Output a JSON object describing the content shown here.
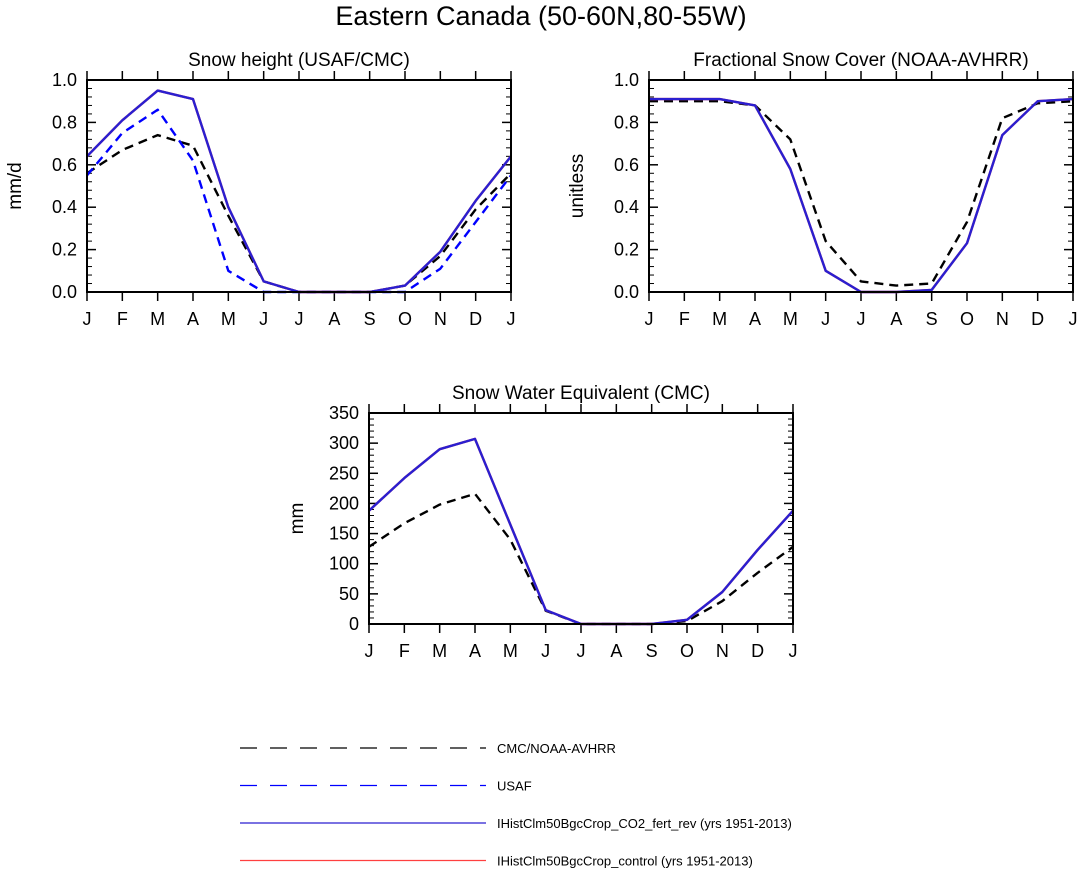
{
  "figure": {
    "title": "Eastern Canada (50-60N,80-55W)"
  },
  "colors": {
    "obs": "#000000",
    "usaf": "#0000ff",
    "co2": "#2a1fd0",
    "control": "#ff4040"
  },
  "chart_data": [
    {
      "type": "line",
      "title": "Snow height (USAF/CMC)",
      "xlabel": "",
      "ylabel": "mm/d",
      "ylim": [
        0,
        1.0
      ],
      "yticks": [
        0,
        0.2,
        0.4,
        0.6,
        0.8,
        1.0
      ],
      "ytick_labels": [
        "0.0",
        "0.2",
        "0.4",
        "0.6",
        "0.8",
        "1.0"
      ],
      "categories": [
        "J",
        "F",
        "M",
        "A",
        "M",
        "J",
        "J",
        "A",
        "S",
        "O",
        "N",
        "D",
        "J"
      ],
      "series": [
        {
          "name": "CMC/NOAA-AVHRR",
          "style": "dashed",
          "color": "#000000",
          "values": [
            0.56,
            0.67,
            0.74,
            0.69,
            0.36,
            0.05,
            0.0,
            0.0,
            0.0,
            0.03,
            0.17,
            0.39,
            0.56
          ]
        },
        {
          "name": "USAF",
          "style": "dashed",
          "color": "#0000ff",
          "values": [
            0.55,
            0.75,
            0.86,
            0.62,
            0.1,
            0.0,
            0.0,
            0.0,
            0.0,
            0.0,
            0.11,
            0.33,
            0.55
          ]
        },
        {
          "name": "IHistClm50BgcCrop_control (yrs 1951-2013)",
          "style": "solid",
          "color": "#ff4040",
          "values": [
            0.64,
            0.81,
            0.95,
            0.91,
            0.4,
            0.05,
            0.0,
            0.0,
            0.0,
            0.03,
            0.19,
            0.43,
            0.64
          ]
        },
        {
          "name": "IHistClm50BgcCrop_CO2_fert_rev (yrs 1951-2013)",
          "style": "solid",
          "color": "#2a1fd0",
          "values": [
            0.64,
            0.81,
            0.95,
            0.91,
            0.4,
            0.05,
            0.0,
            0.0,
            0.0,
            0.03,
            0.19,
            0.43,
            0.64
          ]
        }
      ]
    },
    {
      "type": "line",
      "title": "Fractional Snow Cover (NOAA-AVHRR)",
      "xlabel": "",
      "ylabel": "unitless",
      "ylim": [
        0,
        1.0
      ],
      "yticks": [
        0,
        0.2,
        0.4,
        0.6,
        0.8,
        1.0
      ],
      "ytick_labels": [
        "0.0",
        "0.2",
        "0.4",
        "0.6",
        "0.8",
        "1.0"
      ],
      "categories": [
        "J",
        "F",
        "M",
        "A",
        "M",
        "J",
        "J",
        "A",
        "S",
        "O",
        "N",
        "D",
        "J"
      ],
      "series": [
        {
          "name": "CMC/NOAA-AVHRR",
          "style": "dashed",
          "color": "#000000",
          "values": [
            0.9,
            0.9,
            0.9,
            0.88,
            0.72,
            0.24,
            0.05,
            0.03,
            0.04,
            0.33,
            0.82,
            0.89,
            0.9
          ]
        },
        {
          "name": "IHistClm50BgcCrop_control (yrs 1951-2013)",
          "style": "solid",
          "color": "#ff4040",
          "values": [
            0.91,
            0.91,
            0.91,
            0.88,
            0.58,
            0.1,
            0.0,
            0.0,
            0.01,
            0.23,
            0.74,
            0.9,
            0.91
          ]
        },
        {
          "name": "IHistClm50BgcCrop_CO2_fert_rev (yrs 1951-2013)",
          "style": "solid",
          "color": "#2a1fd0",
          "values": [
            0.91,
            0.91,
            0.91,
            0.88,
            0.58,
            0.1,
            0.0,
            0.0,
            0.01,
            0.23,
            0.74,
            0.9,
            0.91
          ]
        }
      ]
    },
    {
      "type": "line",
      "title": "Snow Water Equivalent (CMC)",
      "xlabel": "",
      "ylabel": "mm",
      "ylim": [
        0,
        350
      ],
      "yticks": [
        0,
        50,
        100,
        150,
        200,
        250,
        300,
        350
      ],
      "ytick_labels": [
        "0",
        "50",
        "100",
        "150",
        "200",
        "250",
        "300",
        "350"
      ],
      "categories": [
        "J",
        "F",
        "M",
        "A",
        "M",
        "J",
        "J",
        "A",
        "S",
        "O",
        "N",
        "D",
        "J"
      ],
      "series": [
        {
          "name": "CMC/NOAA-AVHRR",
          "style": "dashed",
          "color": "#000000",
          "values": [
            128,
            167,
            198,
            216,
            140,
            22,
            0,
            0,
            0,
            5,
            38,
            85,
            128
          ]
        },
        {
          "name": "IHistClm50BgcCrop_control (yrs 1951-2013)",
          "style": "solid",
          "color": "#ff4040",
          "values": [
            188,
            242,
            290,
            307,
            165,
            23,
            0,
            0,
            0,
            7,
            53,
            123,
            188
          ]
        },
        {
          "name": "IHistClm50BgcCrop_CO2_fert_rev (yrs 1951-2013)",
          "style": "solid",
          "color": "#2a1fd0",
          "values": [
            188,
            242,
            290,
            307,
            165,
            23,
            0,
            0,
            0,
            7,
            53,
            123,
            188
          ]
        }
      ]
    }
  ],
  "legend": {
    "placement": "bottom-center",
    "entries": [
      {
        "label": "CMC/NOAA-AVHRR",
        "style": "dashed",
        "color": "#000000"
      },
      {
        "label": "USAF",
        "style": "dashed",
        "color": "#0000ff"
      },
      {
        "label": "IHistClm50BgcCrop_CO2_fert_rev (yrs 1951-2013)",
        "style": "solid",
        "color": "#2a1fd0"
      },
      {
        "label": "IHistClm50BgcCrop_control (yrs 1951-2013)",
        "style": "solid",
        "color": "#ff4040"
      }
    ]
  }
}
